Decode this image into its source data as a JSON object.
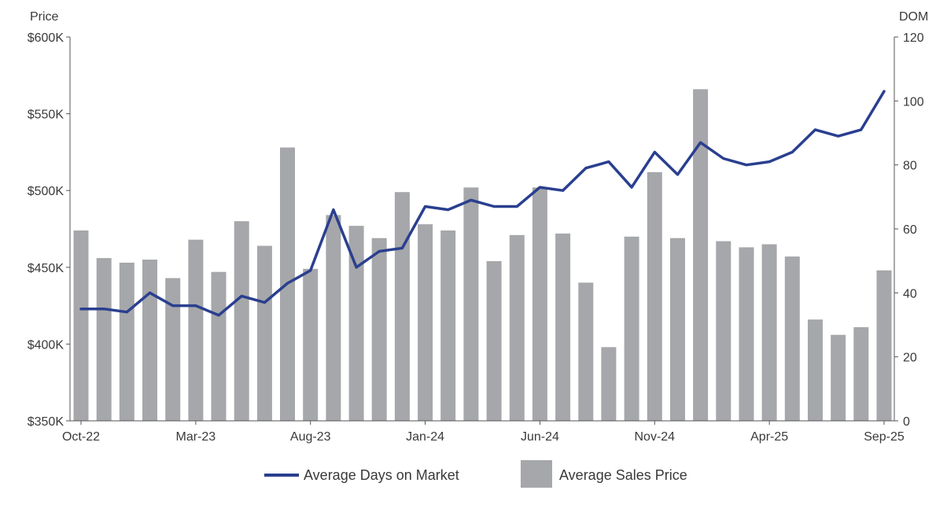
{
  "chart_data": {
    "type": "bar+line",
    "categories": [
      "Oct-22",
      "Nov-22",
      "Dec-22",
      "Jan-23",
      "Feb-23",
      "Mar-23",
      "Apr-23",
      "May-23",
      "Jun-23",
      "Jul-23",
      "Aug-23",
      "Sep-23",
      "Oct-23",
      "Nov-23",
      "Dec-23",
      "Jan-24",
      "Feb-24",
      "Mar-24",
      "Apr-24",
      "May-24",
      "Jun-24",
      "Jul-24",
      "Aug-24",
      "Sep-24",
      "Oct-24",
      "Nov-24",
      "Dec-24",
      "Jan-25",
      "Feb-25",
      "Mar-25",
      "Apr-25",
      "May-25",
      "Jun-25",
      "Jul-25",
      "Aug-25",
      "Sep-25"
    ],
    "x_tick_labels": [
      {
        "index": 0,
        "label": "Oct-22"
      },
      {
        "index": 5,
        "label": "Mar-23"
      },
      {
        "index": 10,
        "label": "Aug-23"
      },
      {
        "index": 15,
        "label": "Jan-24"
      },
      {
        "index": 20,
        "label": "Jun-24"
      },
      {
        "index": 25,
        "label": "Nov-24"
      },
      {
        "index": 30,
        "label": "Apr-25"
      },
      {
        "index": 35,
        "label": "Sep-25"
      }
    ],
    "left_axis": {
      "label": "Price",
      "min": 350000,
      "max": 600000,
      "ticks": [
        {
          "value": 600000,
          "label": "$600K"
        },
        {
          "value": 550000,
          "label": "$550K"
        },
        {
          "value": 500000,
          "label": "$500K"
        },
        {
          "value": 450000,
          "label": "$450K"
        },
        {
          "value": 400000,
          "label": "$400K"
        },
        {
          "value": 350000,
          "label": "$350K"
        }
      ]
    },
    "right_axis": {
      "label": "DOM",
      "min": 0,
      "max": 120,
      "ticks": [
        {
          "value": 120,
          "label": "120"
        },
        {
          "value": 100,
          "label": "100"
        },
        {
          "value": 80,
          "label": "80"
        },
        {
          "value": 60,
          "label": "60"
        },
        {
          "value": 40,
          "label": "40"
        },
        {
          "value": 20,
          "label": "20"
        },
        {
          "value": 0,
          "label": "0"
        }
      ]
    },
    "series": [
      {
        "name": "Average Sales Price",
        "type": "bar",
        "axis": "left",
        "color": "#a6a7aa",
        "values": [
          474000,
          456000,
          453000,
          455000,
          443000,
          468000,
          447000,
          480000,
          464000,
          528000,
          449000,
          484000,
          477000,
          469000,
          499000,
          478000,
          474000,
          502000,
          454000,
          471000,
          502000,
          472000,
          440000,
          398000,
          470000,
          512000,
          469000,
          566000,
          467000,
          463000,
          465000,
          457000,
          416000,
          406000,
          411000,
          448000
        ]
      },
      {
        "name": "Average Days on Market",
        "type": "line",
        "axis": "right",
        "color": "#2a3f8f",
        "values": [
          35,
          35,
          34,
          40,
          36,
          36,
          33,
          39,
          37,
          43,
          47,
          66,
          48,
          53,
          54,
          67,
          66,
          69,
          67,
          67,
          73,
          72,
          79,
          81,
          73,
          84,
          77,
          87,
          82,
          80,
          81,
          84,
          91,
          89,
          91,
          103
        ]
      }
    ],
    "legend": {
      "position": "bottom",
      "items": [
        {
          "label": "Average Days on Market",
          "kind": "line",
          "color": "#2a3f8f"
        },
        {
          "label": "Average Sales Price",
          "kind": "swatch",
          "color": "#a6a7aa"
        }
      ]
    },
    "grid": false
  }
}
